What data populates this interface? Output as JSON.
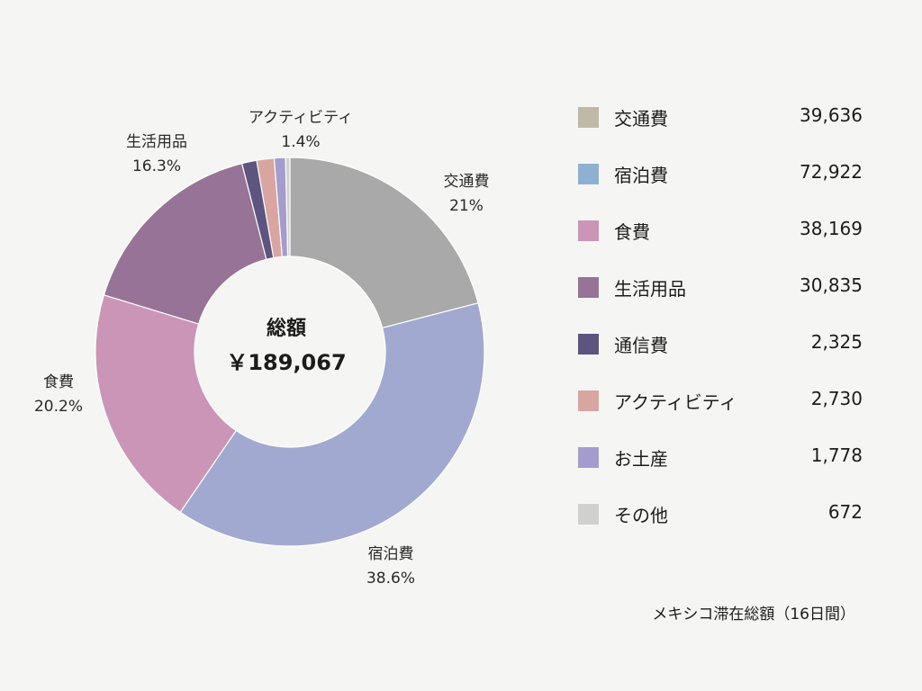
{
  "chart_data": {
    "type": "pie",
    "donut": true,
    "total_label": "総額",
    "total_value": "￥189,067",
    "caption": "メキシコ滞在総額（16日間）",
    "legend_position": "right",
    "start": "top",
    "direction": "clockwise",
    "series": [
      {
        "name": "交通費",
        "value": 39636,
        "value_text": "39,636",
        "color": "#a9a9a9",
        "legend_color": "#bfb9a7",
        "label": "交通費",
        "percent": "21%"
      },
      {
        "name": "宿泊費",
        "value": 72922,
        "value_text": "72,922",
        "color": "#a2a9d0",
        "legend_color": "#8fb1d1",
        "label": "宿泊費",
        "percent": "38.6%"
      },
      {
        "name": "食費",
        "value": 38169,
        "value_text": "38,169",
        "color": "#cb95b7",
        "legend_color": "#cb95b7",
        "label": "食費",
        "percent": "20.2%"
      },
      {
        "name": "生活用品",
        "value": 30835,
        "value_text": "30,835",
        "color": "#977497",
        "legend_color": "#977497",
        "label": "生活用品",
        "percent": "16.3%"
      },
      {
        "name": "通信費",
        "value": 2325,
        "value_text": "2,325",
        "color": "#5d5580",
        "legend_color": "#5d5580",
        "label": "",
        "percent": ""
      },
      {
        "name": "アクティビティ",
        "value": 2730,
        "value_text": "2,730",
        "color": "#d9a5a0",
        "legend_color": "#d9a5a0",
        "label": "アクティビティ",
        "percent": "1.4%"
      },
      {
        "name": "お土産",
        "value": 1778,
        "value_text": "1,778",
        "color": "#a39ccd",
        "legend_color": "#a39ccd",
        "label": "",
        "percent": ""
      },
      {
        "name": "その他",
        "value": 672,
        "value_text": "672",
        "color": "#d0d0d0",
        "legend_color": "#d0d0d0",
        "label": "",
        "percent": ""
      }
    ]
  }
}
